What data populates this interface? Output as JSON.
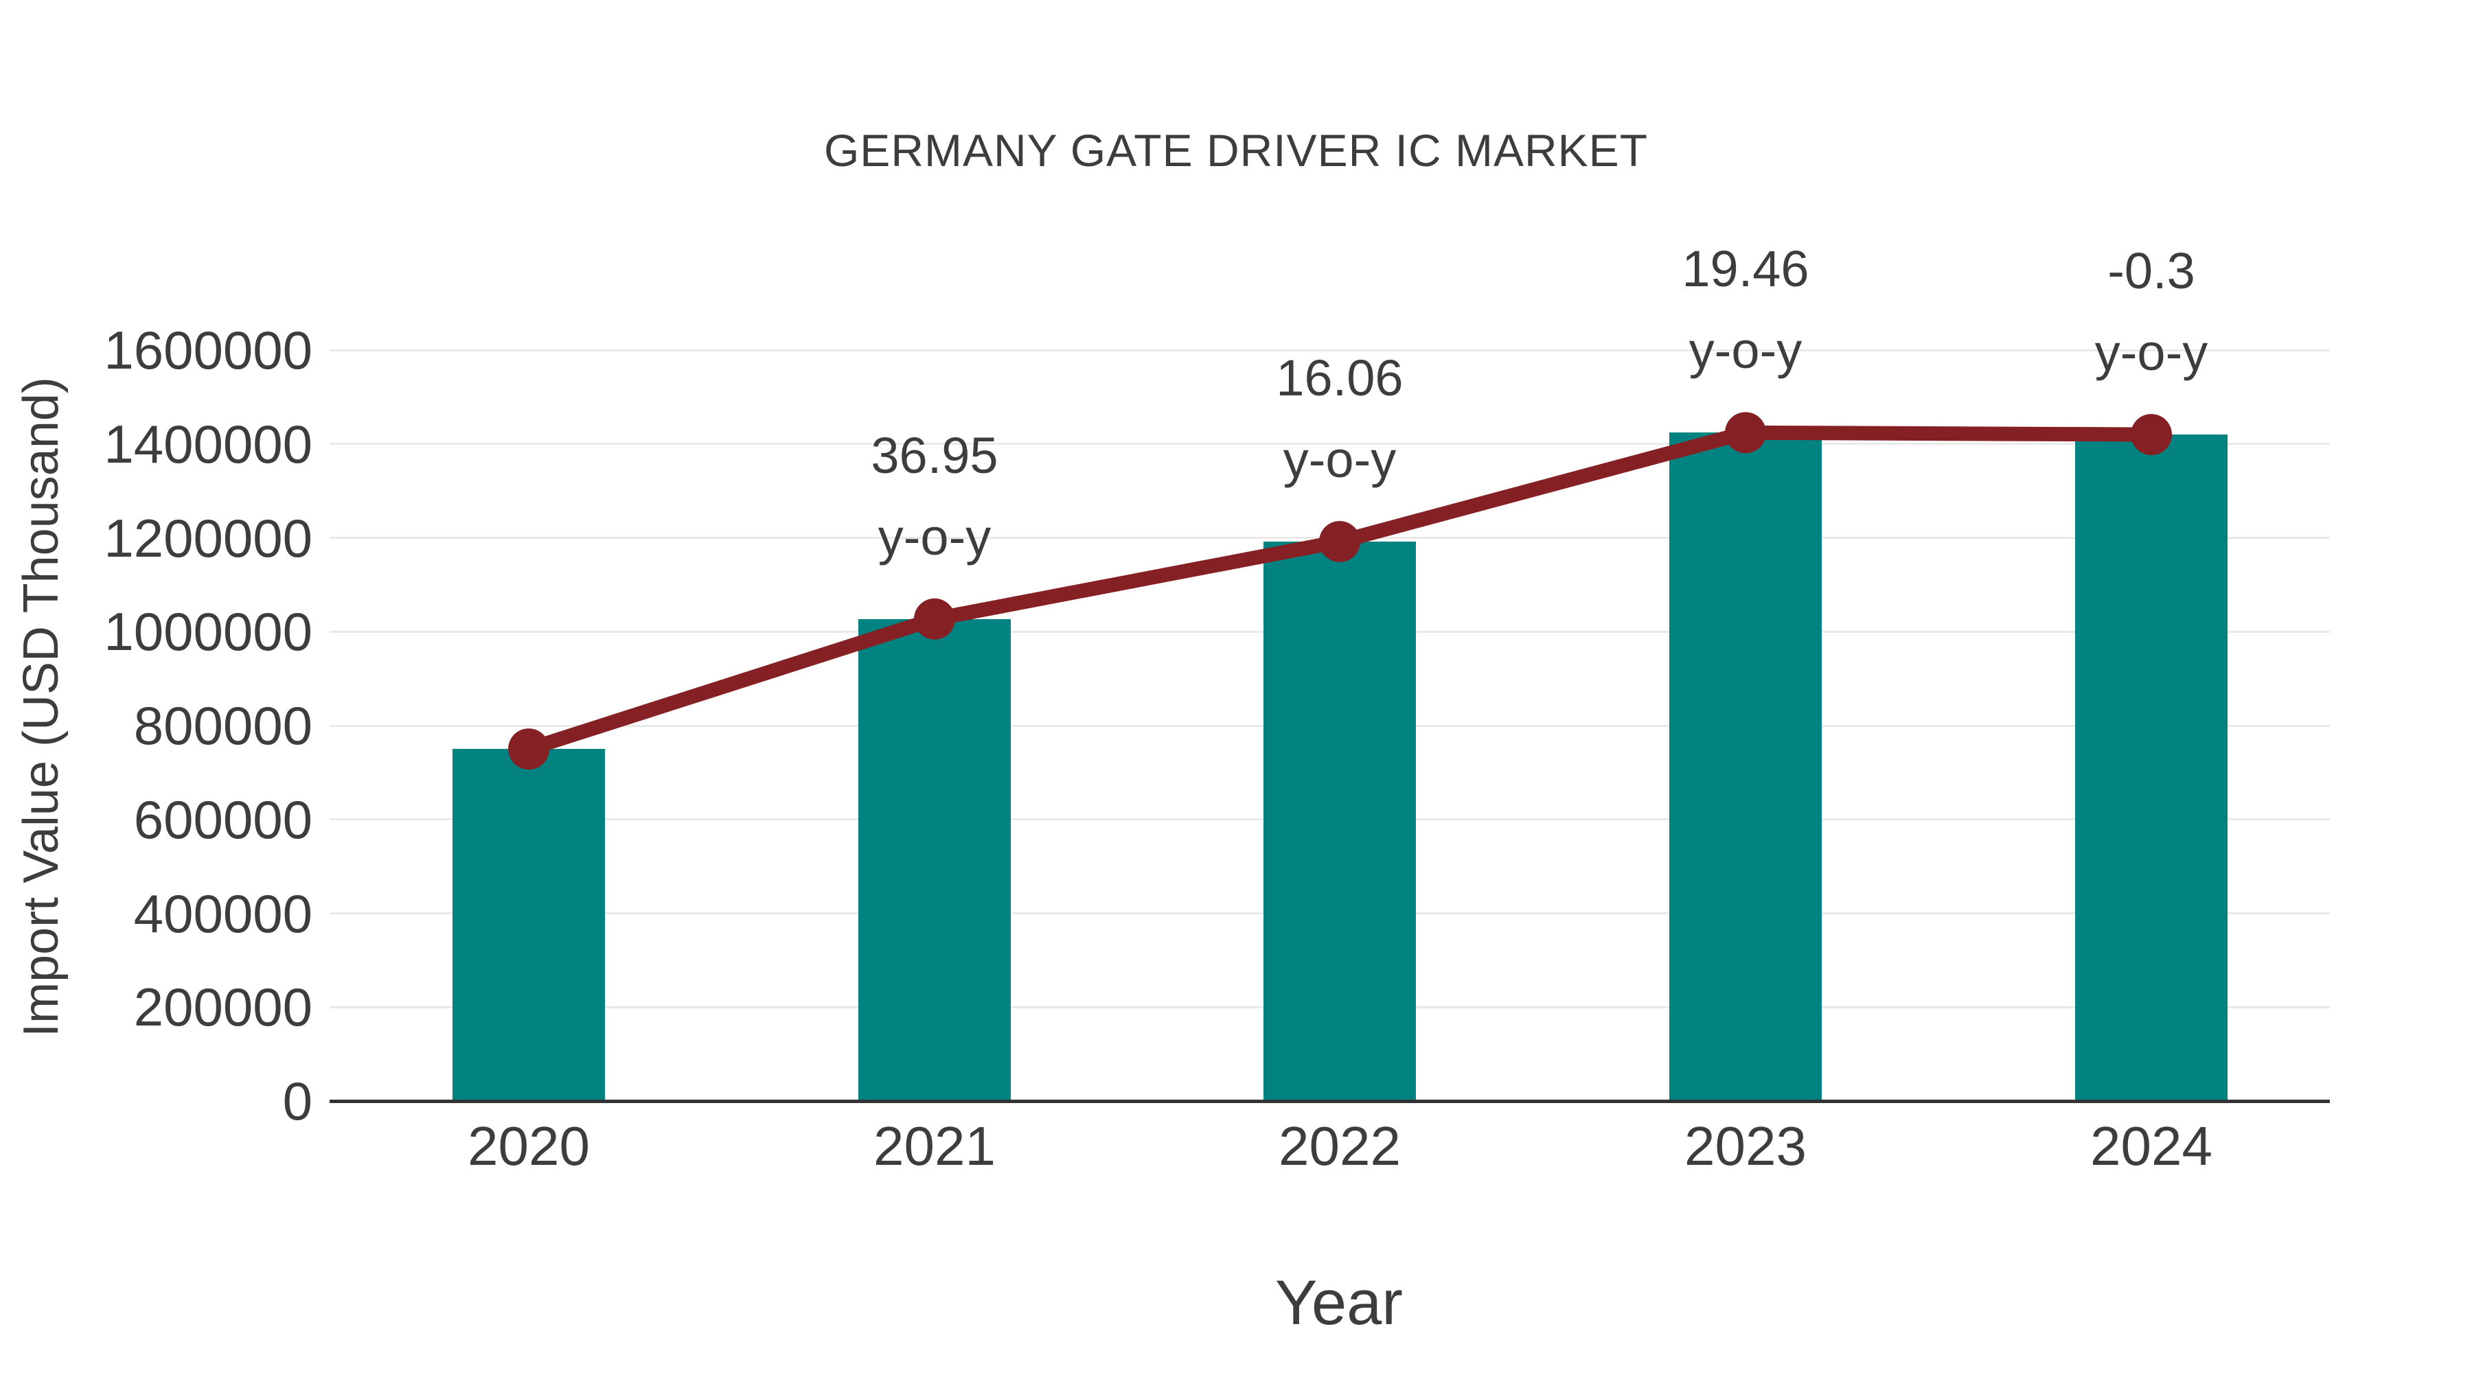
{
  "chart": {
    "title": "GERMANY GATE DRIVER IC MARKET",
    "xlabel": "Year",
    "ylabel": "Import Value (USD Thousand)"
  },
  "colors": {
    "background": "#FFFFFF",
    "bar": "#028280",
    "line": "#852124",
    "text": "#3D3D3D",
    "grid": "#E9E9E9",
    "axis": "#333333"
  },
  "chart_data": {
    "type": "bar",
    "title": "GERMANY GATE DRIVER IC MARKET",
    "xlabel": "Year",
    "ylabel": "Import Value (USD Thousand)",
    "categories": [
      "2020",
      "2021",
      "2022",
      "2023",
      "2024"
    ],
    "series": [
      {
        "name": "Import Value (USD Thousand)",
        "type": "bar",
        "color": "#028280",
        "values": [
          750000,
          1027000,
          1192000,
          1424000,
          1420000
        ]
      },
      {
        "name": "y-o-y growth (%)",
        "type": "line",
        "color": "#852124",
        "marker": "circle",
        "values": [
          null,
          36.95,
          16.06,
          19.46,
          -0.3
        ]
      }
    ],
    "annotations": [
      {
        "x": "2021",
        "label": "36.95",
        "sublabel": "y-o-y"
      },
      {
        "x": "2022",
        "label": "16.06",
        "sublabel": "y-o-y"
      },
      {
        "x": "2023",
        "label": "19.46",
        "sublabel": "y-o-y"
      },
      {
        "x": "2024",
        "label": "-0.3",
        "sublabel": "y-o-y"
      }
    ],
    "ylim": [
      0,
      1600000
    ],
    "yticks": [
      0,
      200000,
      400000,
      600000,
      800000,
      1000000,
      1200000,
      1400000,
      1600000
    ],
    "grid": "horizontal",
    "legend": "none"
  }
}
